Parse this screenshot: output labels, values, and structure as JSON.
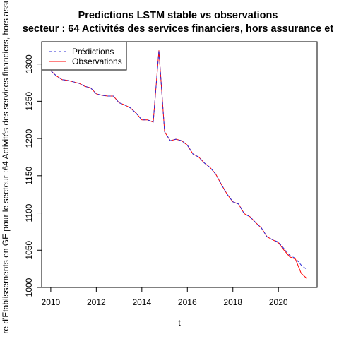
{
  "chart_data": {
    "type": "line",
    "title": "Predictions LSTM stable vs observations",
    "subtitle": "secteur : 64 Activités des services financiers, hors assurance et",
    "xlabel": "t",
    "ylabel": "re d'Etablissements en GE pour le secteur :64 Activités des services financiers, hors assur",
    "xlim": [
      2009.6,
      2021.7
    ],
    "ylim": [
      1000,
      1330
    ],
    "x_ticks": [
      2010,
      2012,
      2014,
      2016,
      2018,
      2020
    ],
    "y_ticks": [
      1000,
      1050,
      1100,
      1150,
      1200,
      1250,
      1300
    ],
    "grid": false,
    "legend_position": "top-left",
    "series": [
      {
        "name": "Prédictions",
        "color": "#2b2bd6",
        "dash": "dashed",
        "x": [
          2010.0,
          2010.25,
          2010.5,
          2010.75,
          2011.0,
          2011.25,
          2011.5,
          2011.75,
          2012.0,
          2012.25,
          2012.5,
          2012.75,
          2013.0,
          2013.25,
          2013.5,
          2013.75,
          2014.0,
          2014.25,
          2014.5,
          2014.75,
          2015.0,
          2015.25,
          2015.5,
          2015.75,
          2016.0,
          2016.25,
          2016.5,
          2016.75,
          2017.0,
          2017.25,
          2017.5,
          2017.75,
          2018.0,
          2018.25,
          2018.5,
          2018.75,
          2019.0,
          2019.25,
          2019.5,
          2019.75,
          2020.0,
          2020.25,
          2020.5,
          2020.75,
          2021.0,
          2021.25
        ],
        "values": [
          1291,
          1284,
          1279,
          1278,
          1276,
          1274,
          1270,
          1268,
          1260,
          1258,
          1257,
          1257,
          1248,
          1245,
          1241,
          1234,
          1225,
          1225,
          1222,
          1318,
          1209,
          1197,
          1199,
          1197,
          1191,
          1179,
          1175,
          1167,
          1161,
          1152,
          1138,
          1125,
          1115,
          1112,
          1099,
          1095,
          1087,
          1080,
          1068,
          1064,
          1061,
          1052,
          1043,
          1039,
          1030,
          1024
        ]
      },
      {
        "name": "Observations",
        "color": "#ff0000",
        "dash": "solid",
        "x": [
          2010.0,
          2010.25,
          2010.5,
          2010.75,
          2011.0,
          2011.25,
          2011.5,
          2011.75,
          2012.0,
          2012.25,
          2012.5,
          2012.75,
          2013.0,
          2013.25,
          2013.5,
          2013.75,
          2014.0,
          2014.25,
          2014.5,
          2014.75,
          2015.0,
          2015.25,
          2015.5,
          2015.75,
          2016.0,
          2016.25,
          2016.5,
          2016.75,
          2017.0,
          2017.25,
          2017.5,
          2017.75,
          2018.0,
          2018.25,
          2018.5,
          2018.75,
          2019.0,
          2019.25,
          2019.5,
          2019.75,
          2020.0,
          2020.25,
          2020.5,
          2020.75,
          2021.0,
          2021.25
        ],
        "values": [
          1291,
          1284,
          1279,
          1278,
          1276,
          1274,
          1270,
          1268,
          1260,
          1258,
          1257,
          1257,
          1248,
          1245,
          1241,
          1234,
          1225,
          1225,
          1222,
          1318,
          1209,
          1197,
          1199,
          1197,
          1191,
          1179,
          1175,
          1167,
          1161,
          1152,
          1138,
          1125,
          1115,
          1112,
          1099,
          1095,
          1087,
          1080,
          1068,
          1064,
          1060,
          1050,
          1041,
          1038,
          1019,
          1012
        ]
      }
    ]
  }
}
